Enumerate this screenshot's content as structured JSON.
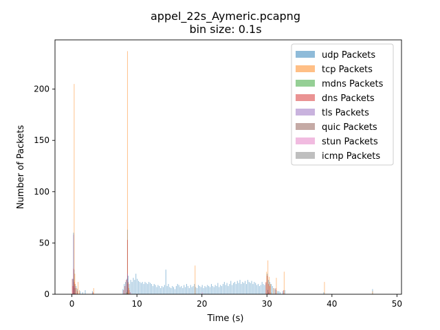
{
  "chart_data": {
    "type": "bar",
    "title": "appel_22s_Aymeric.pcapng",
    "subtitle": "bin size: 0.1s",
    "xlabel": "Time (s)",
    "ylabel": "Number of Packets",
    "bin_size": 0.1,
    "xlim": [
      -2.6,
      50.7
    ],
    "ylim": [
      0,
      248
    ],
    "xticks": [
      0,
      10,
      20,
      30,
      40,
      50
    ],
    "yticks": [
      0,
      50,
      100,
      150,
      200
    ],
    "grid": false,
    "legend_position": "top-right",
    "series": [
      {
        "name": "udp Packets",
        "color": "#1f77b4",
        "points": [
          [
            0.1,
            15
          ],
          [
            0.2,
            60
          ],
          [
            0.3,
            24
          ],
          [
            0.4,
            10
          ],
          [
            0.6,
            8
          ],
          [
            0.8,
            5
          ],
          [
            1.2,
            3
          ],
          [
            1.6,
            2
          ],
          [
            2.0,
            4
          ],
          [
            3.1,
            3
          ],
          [
            7.8,
            5
          ],
          [
            8.0,
            10
          ],
          [
            8.2,
            12
          ],
          [
            8.4,
            15
          ],
          [
            8.5,
            63
          ],
          [
            8.6,
            18
          ],
          [
            8.8,
            10
          ],
          [
            9.0,
            14
          ],
          [
            9.2,
            12
          ],
          [
            9.4,
            16
          ],
          [
            9.6,
            14
          ],
          [
            9.8,
            20
          ],
          [
            10.0,
            15
          ],
          [
            10.2,
            13
          ],
          [
            10.4,
            12
          ],
          [
            10.6,
            11
          ],
          [
            10.8,
            12
          ],
          [
            11.0,
            10
          ],
          [
            11.2,
            12
          ],
          [
            11.4,
            11
          ],
          [
            11.6,
            10
          ],
          [
            11.8,
            12
          ],
          [
            12.0,
            11
          ],
          [
            12.2,
            10
          ],
          [
            12.4,
            8
          ],
          [
            12.6,
            10
          ],
          [
            12.8,
            9
          ],
          [
            13.0,
            7
          ],
          [
            13.2,
            9
          ],
          [
            13.4,
            8
          ],
          [
            13.6,
            6
          ],
          [
            13.8,
            8
          ],
          [
            14.0,
            7
          ],
          [
            14.2,
            9
          ],
          [
            14.4,
            24
          ],
          [
            14.6,
            8
          ],
          [
            14.8,
            10
          ],
          [
            15.0,
            7
          ],
          [
            15.2,
            6
          ],
          [
            15.4,
            8
          ],
          [
            15.6,
            7
          ],
          [
            15.8,
            5
          ],
          [
            16.0,
            8
          ],
          [
            16.2,
            10
          ],
          [
            16.4,
            9
          ],
          [
            16.6,
            7
          ],
          [
            16.8,
            8
          ],
          [
            17.0,
            6
          ],
          [
            17.2,
            9
          ],
          [
            17.4,
            7
          ],
          [
            17.6,
            10
          ],
          [
            17.8,
            8
          ],
          [
            18.0,
            6
          ],
          [
            18.2,
            9
          ],
          [
            18.4,
            7
          ],
          [
            18.6,
            8
          ],
          [
            18.8,
            10
          ],
          [
            19.0,
            7
          ],
          [
            19.2,
            6
          ],
          [
            19.4,
            9
          ],
          [
            19.6,
            8
          ],
          [
            19.8,
            7
          ],
          [
            20.0,
            9
          ],
          [
            20.2,
            6
          ],
          [
            20.4,
            8
          ],
          [
            20.6,
            7
          ],
          [
            20.8,
            9
          ],
          [
            21.0,
            8
          ],
          [
            21.2,
            7
          ],
          [
            21.4,
            10
          ],
          [
            21.6,
            8
          ],
          [
            21.8,
            7
          ],
          [
            22.0,
            9
          ],
          [
            22.2,
            8
          ],
          [
            22.4,
            11
          ],
          [
            22.6,
            7
          ],
          [
            22.8,
            9
          ],
          [
            23.0,
            8
          ],
          [
            23.2,
            10
          ],
          [
            23.4,
            12
          ],
          [
            23.6,
            9
          ],
          [
            23.8,
            11
          ],
          [
            24.0,
            8
          ],
          [
            24.2,
            10
          ],
          [
            24.4,
            13
          ],
          [
            24.6,
            9
          ],
          [
            24.8,
            11
          ],
          [
            25.0,
            12
          ],
          [
            25.2,
            10
          ],
          [
            25.4,
            13
          ],
          [
            25.6,
            11
          ],
          [
            25.8,
            14
          ],
          [
            26.0,
            10
          ],
          [
            26.2,
            12
          ],
          [
            26.4,
            11
          ],
          [
            26.6,
            13
          ],
          [
            26.8,
            10
          ],
          [
            27.0,
            14
          ],
          [
            27.2,
            12
          ],
          [
            27.4,
            11
          ],
          [
            27.6,
            13
          ],
          [
            27.8,
            10
          ],
          [
            28.0,
            12
          ],
          [
            28.2,
            11
          ],
          [
            28.4,
            9
          ],
          [
            28.6,
            10
          ],
          [
            28.8,
            8
          ],
          [
            29.0,
            9
          ],
          [
            29.2,
            12
          ],
          [
            29.4,
            10
          ],
          [
            29.6,
            9
          ],
          [
            29.8,
            11
          ],
          [
            30.0,
            20
          ],
          [
            30.2,
            14
          ],
          [
            30.4,
            12
          ],
          [
            30.6,
            10
          ],
          [
            30.8,
            8
          ],
          [
            31.0,
            6
          ],
          [
            31.2,
            5
          ],
          [
            31.4,
            4
          ],
          [
            31.6,
            3
          ],
          [
            31.8,
            3
          ],
          [
            32.0,
            2
          ],
          [
            32.4,
            3
          ],
          [
            32.7,
            4
          ],
          [
            38.7,
            2
          ],
          [
            46.2,
            5
          ]
        ]
      },
      {
        "name": "tcp Packets",
        "color": "#ff7f0e",
        "points": [
          [
            0.2,
            14
          ],
          [
            0.3,
            205
          ],
          [
            0.4,
            20
          ],
          [
            0.5,
            10
          ],
          [
            0.7,
            6
          ],
          [
            0.9,
            12
          ],
          [
            1.1,
            4
          ],
          [
            3.3,
            6
          ],
          [
            8.5,
            237
          ],
          [
            8.6,
            11
          ],
          [
            8.7,
            6
          ],
          [
            18.9,
            28
          ],
          [
            29.9,
            22
          ],
          [
            30.1,
            33
          ],
          [
            30.3,
            17
          ],
          [
            30.5,
            10
          ],
          [
            31.0,
            6
          ],
          [
            31.4,
            16
          ],
          [
            32.6,
            22
          ],
          [
            38.8,
            12
          ],
          [
            46.2,
            3
          ]
        ]
      },
      {
        "name": "mdns Packets",
        "color": "#2ca02c",
        "points": [
          [
            8.4,
            2
          ],
          [
            30.2,
            2
          ]
        ]
      },
      {
        "name": "dns Packets",
        "color": "#d62728",
        "points": [
          [
            0.0,
            15
          ],
          [
            0.1,
            8
          ],
          [
            0.2,
            25
          ],
          [
            0.3,
            12
          ],
          [
            0.5,
            6
          ],
          [
            0.8,
            3
          ],
          [
            3.2,
            2
          ],
          [
            7.9,
            4
          ],
          [
            8.1,
            8
          ],
          [
            8.3,
            14
          ],
          [
            8.5,
            53
          ],
          [
            8.6,
            10
          ],
          [
            8.8,
            4
          ],
          [
            29.8,
            12
          ],
          [
            30.0,
            18
          ],
          [
            30.2,
            10
          ],
          [
            30.4,
            8
          ],
          [
            31.3,
            6
          ],
          [
            32.5,
            4
          ]
        ]
      },
      {
        "name": "tls Packets",
        "color": "#9467bd",
        "points": [
          [
            0.2,
            58
          ],
          [
            0.4,
            8
          ],
          [
            8.5,
            20
          ],
          [
            30.0,
            5
          ]
        ]
      },
      {
        "name": "quic Packets",
        "color": "#8c564b",
        "points": [
          [
            0.3,
            6
          ],
          [
            8.5,
            4
          ],
          [
            8.6,
            12
          ],
          [
            30.1,
            4
          ]
        ]
      },
      {
        "name": "stun Packets",
        "color": "#e377c2",
        "points": [
          [
            9.0,
            2
          ],
          [
            20.0,
            2
          ],
          [
            30.3,
            2
          ]
        ]
      },
      {
        "name": "icmp Packets",
        "color": "#7f7f7f",
        "points": [
          [
            8.9,
            2
          ],
          [
            30.6,
            2
          ]
        ]
      }
    ]
  }
}
